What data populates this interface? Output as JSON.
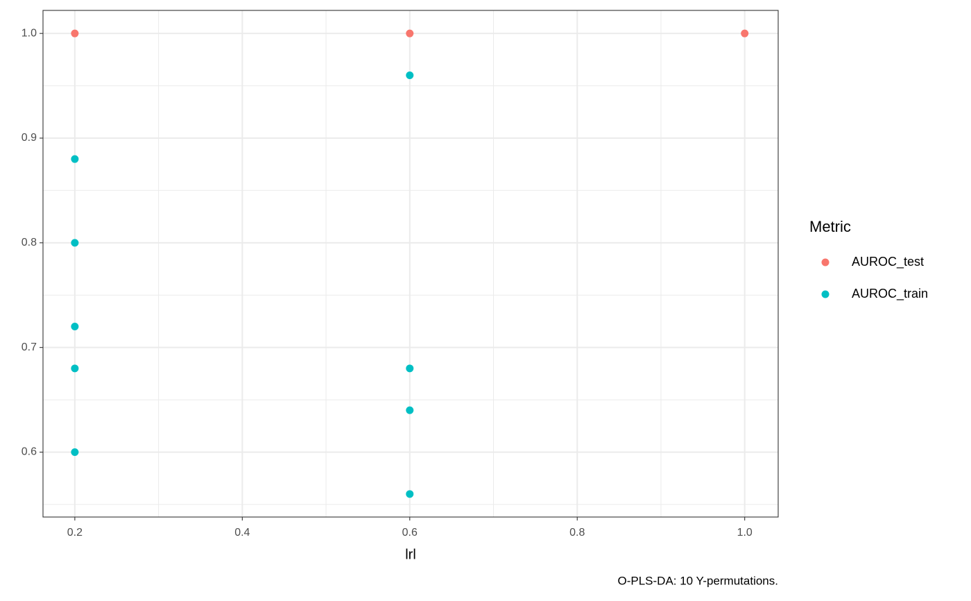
{
  "chart_data": {
    "type": "scatter",
    "x_label": "lrl",
    "caption": "O-PLS-DA: 10 Y-permutations.",
    "legend_title": "Metric",
    "legend_position": "right",
    "grid": true,
    "xlim": [
      0.162,
      1.04
    ],
    "ylim": [
      0.538,
      1.022
    ],
    "xticks": [
      0.2,
      0.4,
      0.6,
      0.8,
      {
        "value": 1,
        "label": "1.0"
      }
    ],
    "yticks": [
      0.6,
      0.7,
      0.8,
      0.9,
      {
        "value": 1,
        "label": "1.0"
      }
    ],
    "series": [
      {
        "name": "AUROC_test",
        "color": "#f8766d",
        "x": [
          0.2,
          0.6,
          1.0
        ],
        "values": [
          1.0,
          1.0,
          1.0
        ]
      },
      {
        "name": "AUROC_train",
        "color": "#00bfc4",
        "x": [
          0.2,
          0.2,
          0.2,
          0.2,
          0.2,
          0.6,
          0.6,
          0.6,
          0.6
        ],
        "values": [
          0.88,
          0.8,
          0.72,
          0.68,
          0.6,
          0.96,
          0.68,
          0.64,
          0.56
        ]
      }
    ]
  }
}
